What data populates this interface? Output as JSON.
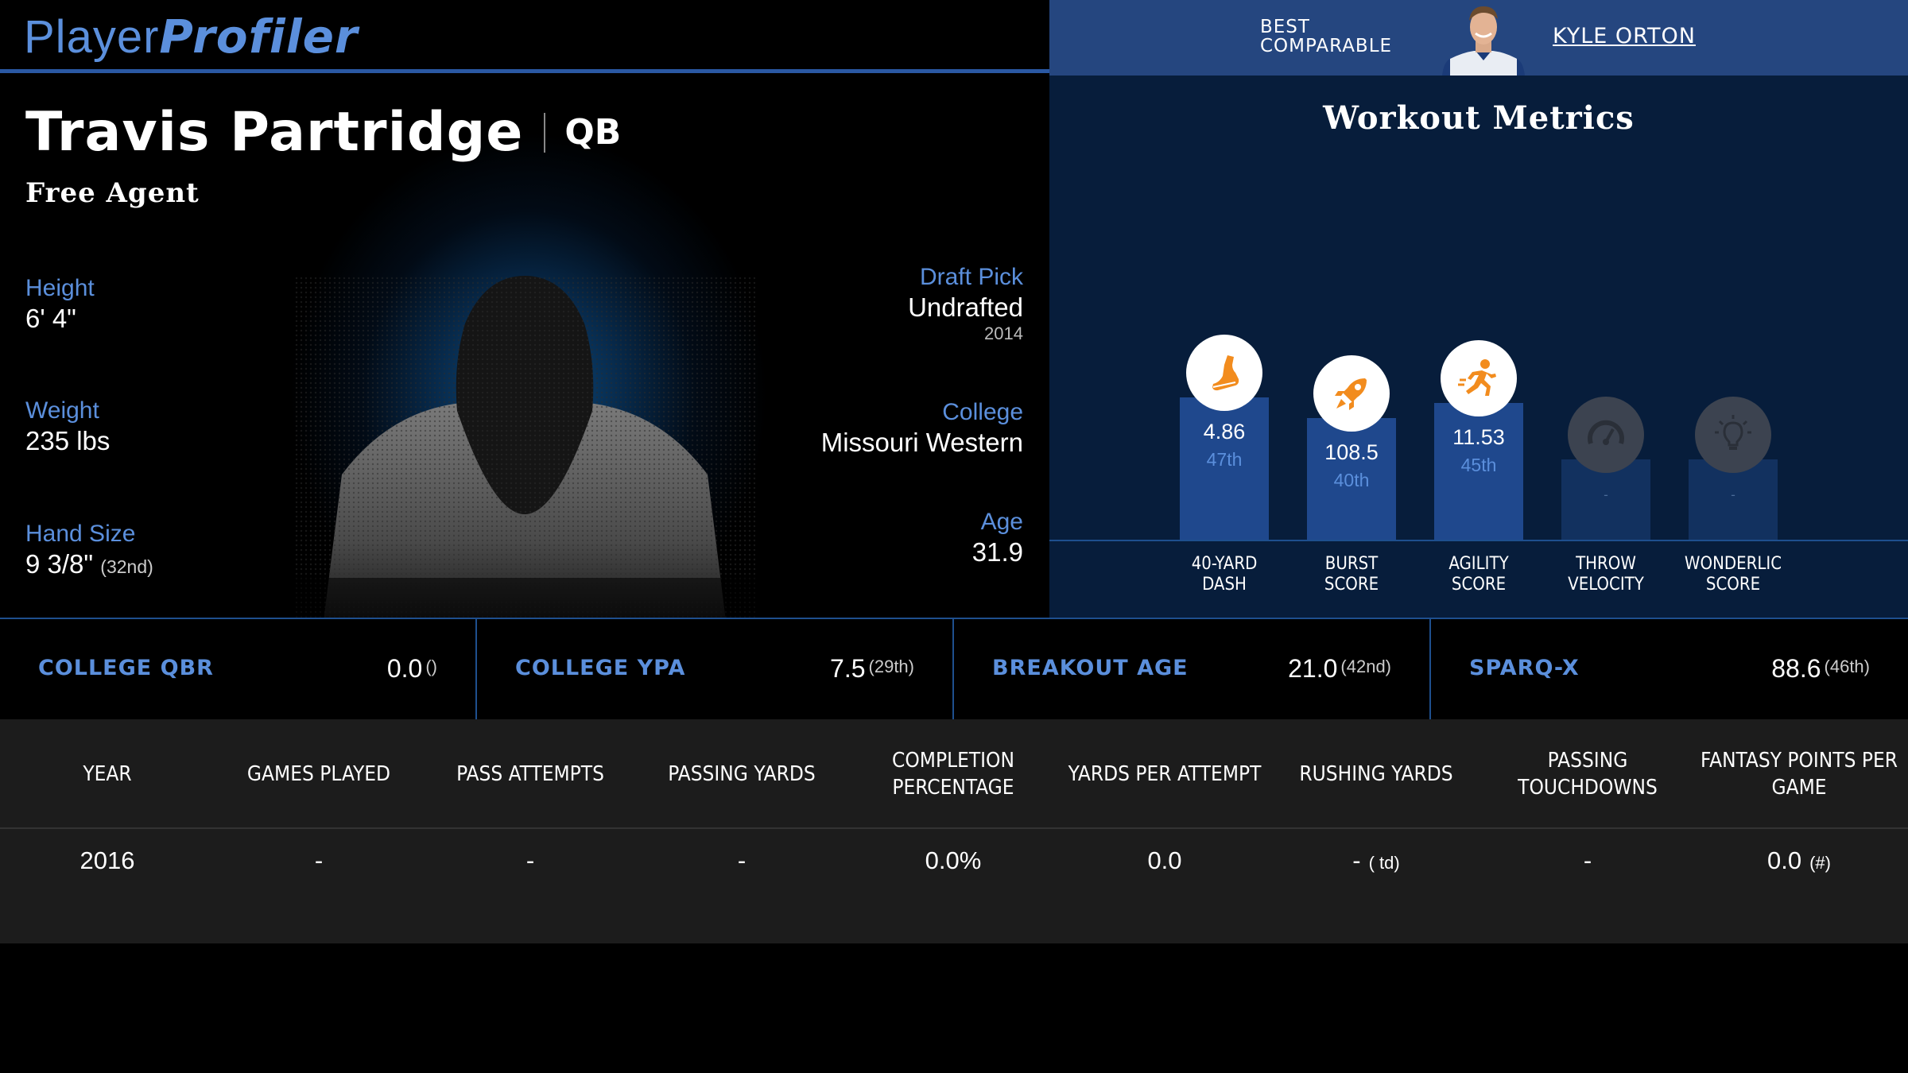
{
  "header": {
    "logo_part1": "Player",
    "logo_part2": "Profiler",
    "comparable_label_line1": "BEST",
    "comparable_label_line2": "COMPARABLE",
    "comparable_name": "KYLE ORTON"
  },
  "player": {
    "name": "Travis Partridge",
    "position": "QB",
    "status": "Free Agent",
    "height_label": "Height",
    "height": "6' 4\"",
    "weight_label": "Weight",
    "weight": "235 lbs",
    "hand_label": "Hand Size",
    "hand": "9 3/8\"",
    "hand_rank": "(32nd)",
    "draft_label": "Draft Pick",
    "draft": "Undrafted",
    "draft_year": "2014",
    "college_label": "College",
    "college": "Missouri Western",
    "age_label": "Age",
    "age": "31.9"
  },
  "workout": {
    "title": "Workout Metrics",
    "metrics": [
      {
        "label1": "40-YARD",
        "label2": "DASH",
        "value": "4.86",
        "pct": "47th",
        "icon": "shoe-icon",
        "percentile": 47
      },
      {
        "label1": "BURST",
        "label2": "SCORE",
        "value": "108.5",
        "pct": "40th",
        "icon": "rocket-icon",
        "percentile": 40
      },
      {
        "label1": "AGILITY",
        "label2": "SCORE",
        "value": "11.53",
        "pct": "45th",
        "icon": "runner-icon",
        "percentile": 45
      },
      {
        "label1": "THROW",
        "label2": "VELOCITY",
        "value": "-",
        "pct": "",
        "icon": "speedometer-icon",
        "percentile": null
      },
      {
        "label1": "WONDERLIC",
        "label2": "SCORE",
        "value": "-",
        "pct": "",
        "icon": "lightbulb-icon",
        "percentile": null
      }
    ]
  },
  "stats": [
    {
      "name": "COLLEGE QBR",
      "value": "0.0",
      "rank": "()"
    },
    {
      "name": "COLLEGE YPA",
      "value": "7.5",
      "rank": "(29th)"
    },
    {
      "name": "BREAKOUT AGE",
      "value": "21.0",
      "rank": "(42nd)"
    },
    {
      "name": "SPARQ-X",
      "value": "88.6",
      "rank": "(46th)"
    }
  ],
  "table": {
    "headers": [
      "YEAR",
      "GAMES PLAYED",
      "PASS ATTEMPTS",
      "PASSING YARDS",
      "COMPLETION PERCENTAGE",
      "YARDS PER ATTEMPT",
      "RUSHING YARDS",
      "PASSING TOUCHDOWNS",
      "FANTASY POINTS PER GAME"
    ],
    "row": {
      "year": "2016",
      "games": "-",
      "attempts": "-",
      "pass_yards": "-",
      "completion": "0.0%",
      "ypa": "0.0",
      "rush_yards": "-",
      "rush_td": "( td)",
      "pass_td": "-",
      "fppg": "0.0",
      "fppg_rank": "(#)"
    }
  },
  "colors": {
    "accent": "#5b8fdc",
    "bar": "#1f488d",
    "icon_orange": "#f28c1e"
  }
}
